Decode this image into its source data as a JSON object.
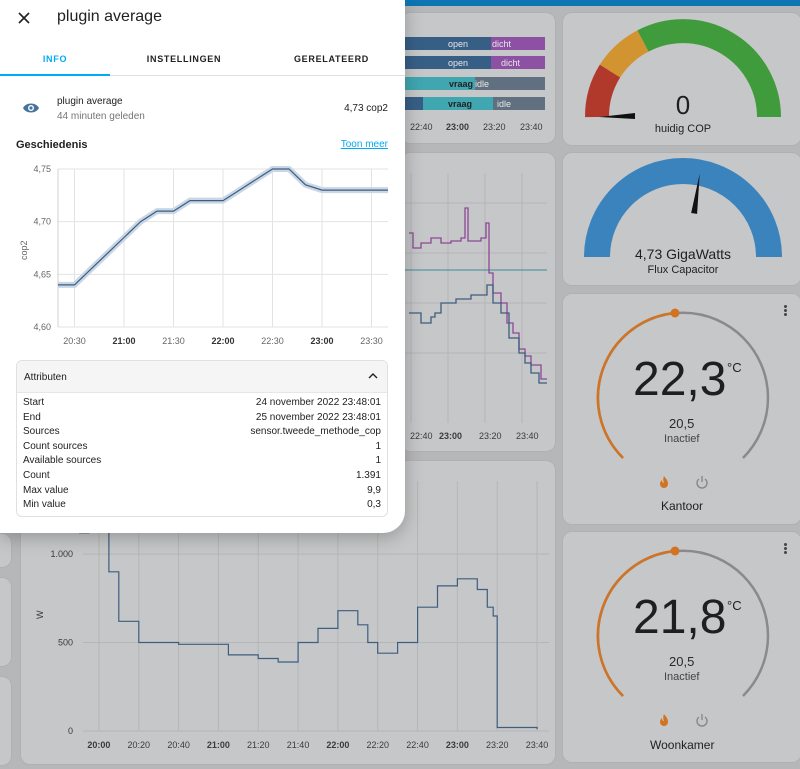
{
  "dialog": {
    "title": "plugin average",
    "tabs": [
      {
        "label": "INFO",
        "active": true
      },
      {
        "label": "INSTELLINGEN",
        "active": false
      },
      {
        "label": "GERELATEERD",
        "active": false
      }
    ],
    "entity": {
      "icon": "eye-icon",
      "name": "plugin average",
      "sub": "44 minuten geleden",
      "value": "4,73 cop2"
    },
    "history": {
      "title": "Geschiedenis",
      "more": "Toon meer"
    },
    "attributes": {
      "title": "Attributen",
      "rows": [
        {
          "key": "Start",
          "value": "24 november 2022 23:48:01"
        },
        {
          "key": "End",
          "value": "25 november 2022 23:48:01"
        },
        {
          "key": "Sources",
          "value": "sensor.tweede_methode_cop"
        },
        {
          "key": "Count sources",
          "value": "1"
        },
        {
          "key": "Available sources",
          "value": "1"
        },
        {
          "key": "Count",
          "value": "1.391"
        },
        {
          "key": "Max value",
          "value": "9,9"
        },
        {
          "key": "Min value",
          "value": "0,3"
        }
      ]
    }
  },
  "chart_data": [
    {
      "type": "line",
      "ylabel": "cop2",
      "ylim": [
        4.6,
        4.75
      ],
      "yticks": [
        "4,75",
        "4,70",
        "4,65",
        "4,60"
      ],
      "xticks": [
        "20:30",
        "21:00",
        "21:30",
        "22:00",
        "22:30",
        "23:00",
        "23:30"
      ],
      "xticks_bold": [
        "21:00",
        "22:00",
        "23:00"
      ],
      "series": [
        {
          "values_time": [
            "20:20",
            "20:30",
            "20:40",
            "20:50",
            "21:00",
            "21:10",
            "21:20",
            "21:30",
            "21:40",
            "21:50",
            "22:00",
            "22:10",
            "22:20",
            "22:30",
            "22:40",
            "22:50",
            "23:00",
            "23:10",
            "23:20",
            "23:30",
            "23:40"
          ],
          "values": [
            4.64,
            4.64,
            4.655,
            4.67,
            4.685,
            4.7,
            4.71,
            4.71,
            4.72,
            4.72,
            4.72,
            4.73,
            4.74,
            4.75,
            4.75,
            4.735,
            4.73,
            4.73,
            4.73,
            4.73,
            4.73
          ]
        }
      ]
    },
    {
      "type": "line",
      "ylabel": "W",
      "ylim": [
        0,
        1300
      ],
      "yticks": [
        "1.000",
        "500",
        "0"
      ],
      "xticks": [
        "20:00",
        "20:20",
        "20:40",
        "21:00",
        "21:20",
        "21:40",
        "22:00",
        "22:20",
        "22:40",
        "23:00",
        "23:20",
        "23:40"
      ],
      "xticks_bold": [
        "20:00",
        "21:00",
        "22:00",
        "23:00"
      ],
      "series": [
        {
          "values_time": [
            "19:50",
            "19:55",
            "20:00",
            "20:05",
            "20:10",
            "20:20",
            "20:40",
            "21:00",
            "21:05",
            "21:20",
            "21:30",
            "21:40",
            "21:50",
            "22:00",
            "22:10",
            "22:15",
            "22:20",
            "22:30",
            "22:40",
            "22:50",
            "23:00",
            "23:10",
            "23:15",
            "23:18",
            "23:20",
            "23:40"
          ],
          "values": [
            1120,
            1150,
            1250,
            900,
            620,
            500,
            490,
            490,
            430,
            410,
            390,
            500,
            580,
            680,
            600,
            500,
            440,
            500,
            700,
            820,
            860,
            800,
            700,
            650,
            20,
            10
          ]
        }
      ]
    }
  ],
  "background": {
    "state_rows": [
      {
        "labels": [
          "open",
          "dicht"
        ]
      },
      {
        "labels": [
          "open",
          "dicht"
        ]
      },
      {
        "labels": [
          "vraag",
          "idle"
        ]
      },
      {
        "labels": [
          "vraag",
          "idle"
        ]
      }
    ],
    "state_xticks": [
      "22:40",
      "23:00",
      "23:20",
      "23:40"
    ],
    "mid_xticks": [
      "22:40",
      "23:00",
      "23:20",
      "23:40"
    ]
  },
  "gauges": {
    "cop": {
      "value": "0",
      "label": "huidig COP"
    },
    "flux": {
      "value": "4,73 GigaWatts",
      "label": "Flux Capacitor"
    }
  },
  "thermostats": [
    {
      "temp": "22,3",
      "unit": "°C",
      "target": "20,5",
      "state": "Inactief",
      "name": "Kantoor"
    },
    {
      "temp": "21,8",
      "unit": "°C",
      "target": "20,5",
      "state": "Inactief",
      "name": "Woonkamer"
    }
  ],
  "colors": {
    "accent": "#03a9f4",
    "chart_line": "#3e5d7f",
    "band": "#c9d6e6",
    "thermo_heat": "#d27323",
    "flux_gauge": "#3b83bd",
    "cop_red": "#b1392c",
    "cop_orange": "#d29430",
    "cop_green": "#3f9b3c"
  }
}
